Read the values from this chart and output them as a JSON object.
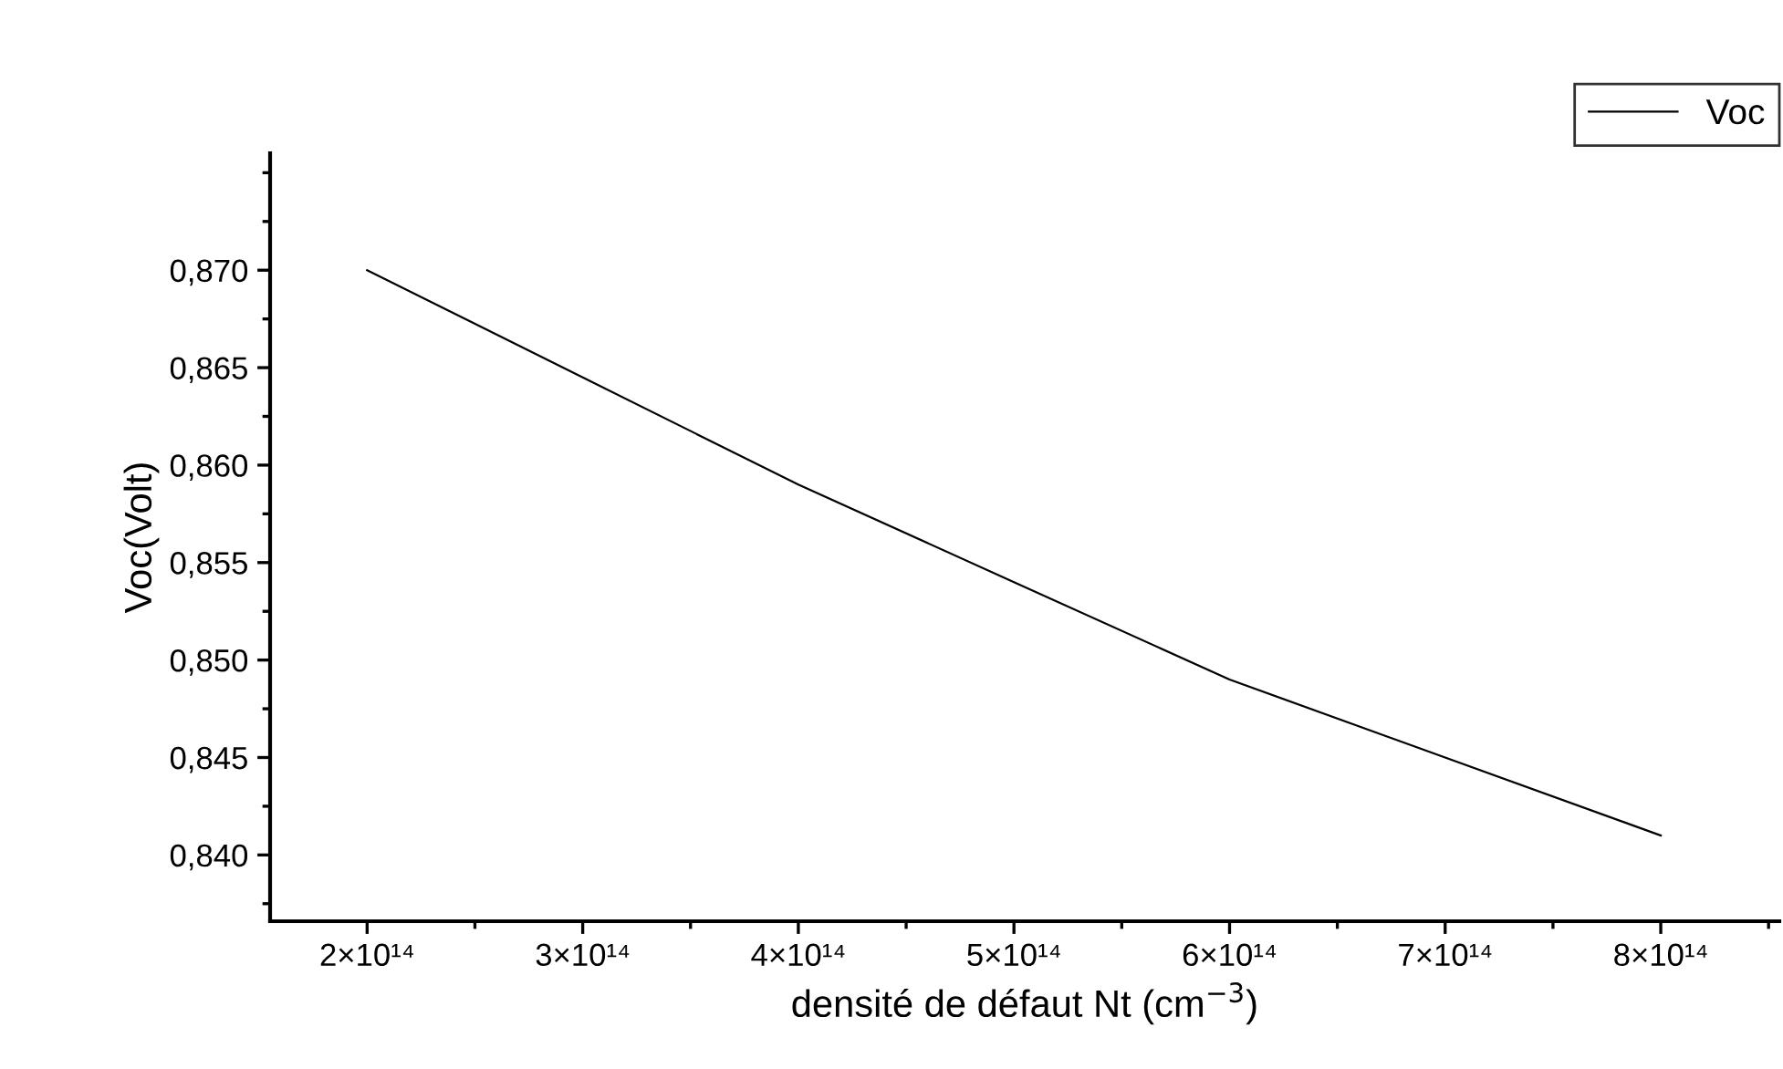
{
  "chart_data": {
    "type": "line",
    "xlabel": "densité de défaut Nt (cm$^{−3}$)",
    "ylabel": "Voc(Volt)",
    "x": [
      200000000000000.0,
      300000000000000.0,
      400000000000000.0,
      500000000000000.0,
      600000000000000.0,
      700000000000000.0,
      800000000000000.0
    ],
    "series": [
      {
        "name": "Voc",
        "color": "#000000",
        "values": [
          0.87,
          0.8645,
          0.859,
          0.854,
          0.849,
          0.845,
          0.841
        ]
      }
    ],
    "xlim": [
      155000000000000.0,
      855000000000000.0
    ],
    "xticks": [
      {
        "value": 200000000000000.0,
        "label": "2×10¹⁴"
      },
      {
        "value": 300000000000000.0,
        "label": "3×10¹⁴"
      },
      {
        "value": 400000000000000.0,
        "label": "4×10¹⁴"
      },
      {
        "value": 500000000000000.0,
        "label": "5×10¹⁴"
      },
      {
        "value": 600000000000000.0,
        "label": "6×10¹⁴"
      },
      {
        "value": 700000000000000.0,
        "label": "7×10¹⁴"
      },
      {
        "value": 800000000000000.0,
        "label": "8×10¹⁴"
      }
    ],
    "ylim": [
      0.8366,
      0.876
    ],
    "yticks": [
      {
        "value": 0.84,
        "label": "0,840"
      },
      {
        "value": 0.845,
        "label": "0,845"
      },
      {
        "value": 0.85,
        "label": "0,850"
      },
      {
        "value": 0.855,
        "label": "0,855"
      },
      {
        "value": 0.86,
        "label": "0,860"
      },
      {
        "value": 0.865,
        "label": "0,865"
      },
      {
        "value": 0.87,
        "label": "0,870"
      }
    ],
    "grid": false,
    "legend": "top right",
    "marker": "none",
    "line_style": "solid"
  }
}
